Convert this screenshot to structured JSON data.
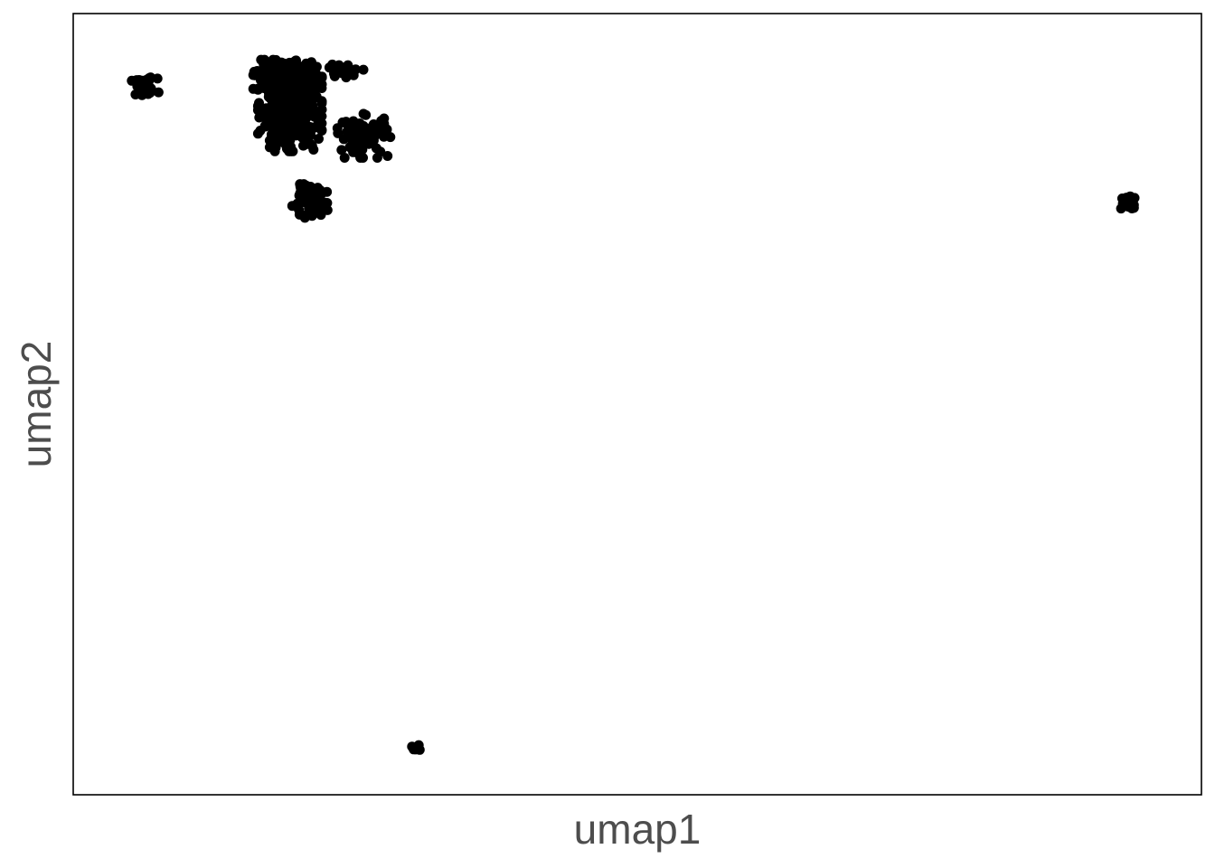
{
  "chart_data": {
    "type": "scatter",
    "title": "",
    "xlabel": "umap1",
    "ylabel": "umap2",
    "xlim": [
      0,
      100
    ],
    "ylim": [
      0,
      100
    ],
    "grid": false,
    "axis_ticks_shown": false,
    "point_color": "#000000",
    "frame_color": "#000000",
    "label_color": "#4d4d4d",
    "clusters": [
      {
        "id": "cluster-top-left-small",
        "center": [
          5.7,
          91.3
        ],
        "spread": [
          0.6,
          0.6
        ],
        "count": 45
      },
      {
        "id": "cluster-main-core",
        "center": [
          18.8,
          88.7
        ],
        "spread": [
          1.3,
          2.6
        ],
        "count": 420
      },
      {
        "id": "cluster-main-upper",
        "center": [
          18.6,
          92.5
        ],
        "spread": [
          1.4,
          1.1
        ],
        "count": 160
      },
      {
        "id": "cluster-main-lower-tail",
        "center": [
          20.5,
          76.5
        ],
        "spread": [
          0.8,
          1.0
        ],
        "count": 70
      },
      {
        "id": "cluster-main-arm-right",
        "center": [
          25.5,
          85.0
        ],
        "spread": [
          1.1,
          1.3
        ],
        "count": 90
      },
      {
        "id": "cluster-main-upper-right",
        "center": [
          23.5,
          93.5
        ],
        "spread": [
          0.9,
          0.4
        ],
        "count": 25
      },
      {
        "id": "cluster-far-right",
        "center": [
          94.2,
          76.4
        ],
        "spread": [
          0.35,
          0.5
        ],
        "count": 40
      },
      {
        "id": "cluster-bottom",
        "center": [
          30.2,
          5.1
        ],
        "spread": [
          0.25,
          0.25
        ],
        "count": 12
      }
    ]
  }
}
